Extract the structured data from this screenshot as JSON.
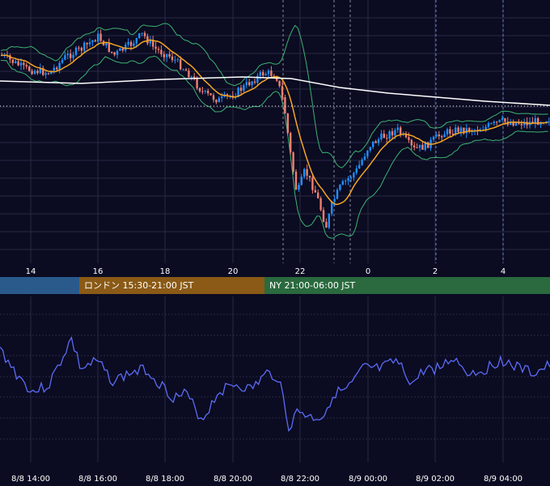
{
  "main_chart": {
    "x_ticks": [
      "14",
      "16",
      "18",
      "20",
      "22",
      "0",
      "2",
      "4"
    ],
    "colors": {
      "background": "#0b0b22",
      "grid": "#2a2a44",
      "candle_up": "#1e90ff",
      "candle_down": "#f08070",
      "bollinger": "#3cb371",
      "ma_short": "#f5a623",
      "ma_long": "#ffffff",
      "axis_bg": "#14142e",
      "tick_text": "#ffffff"
    }
  },
  "sessions": [
    {
      "label": "",
      "color": "#2a5a8c"
    },
    {
      "label": "ロンドン 15:30-21:00 JST",
      "color": "#8a5a16"
    },
    {
      "label": "NY 21:00-06:00 JST",
      "color": "#2a6a3e"
    }
  ],
  "sub_chart": {
    "x_ticks": [
      "8/8 14:00",
      "8/8 16:00",
      "8/8 18:00",
      "8/8 20:00",
      "8/8 22:00",
      "8/9 00:00",
      "8/9 02:00",
      "8/9 04:00"
    ],
    "colors": {
      "line": "#5b6cf5",
      "grid": "#2a2a44",
      "tick_text": "#ffffff"
    }
  }
}
